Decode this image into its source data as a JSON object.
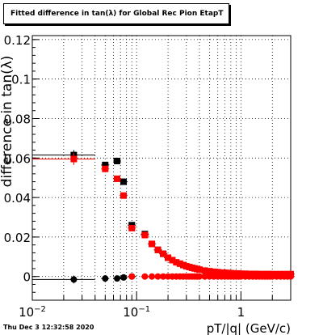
{
  "header": {
    "title": "Fitted difference in tan(λ) for Global Rec Pion EtapT"
  },
  "footer": {
    "timestamp": "Thu Dec  3 12:32:58 2020"
  },
  "chart_data": {
    "type": "scatter",
    "title": "Fitted difference in tan(λ) for Global Rec Pion EtapT",
    "xlabel": "pT/|q| (GeV/c)",
    "ylabel": "difference in tan(λ)",
    "xscale": "log",
    "xlim": [
      0.01,
      3.0
    ],
    "ylim": [
      -0.012,
      0.122
    ],
    "grid": true,
    "x_ticks": [
      {
        "value": 0.01,
        "base": "10",
        "exp": "−2"
      },
      {
        "value": 0.1,
        "base": "10",
        "exp": "−1"
      },
      {
        "value": 1,
        "base": "1",
        "exp": ""
      }
    ],
    "y_ticks": [
      {
        "value": 0,
        "label": "0"
      },
      {
        "value": 0.02,
        "label": "0.02"
      },
      {
        "value": 0.04,
        "label": "0.04"
      },
      {
        "value": 0.06,
        "label": "0.06"
      },
      {
        "value": 0.08,
        "label": "0.08"
      },
      {
        "value": 0.1,
        "label": "0.1"
      },
      {
        "value": 0.12,
        "label": "0.12"
      }
    ],
    "series": [
      {
        "color": "#000000",
        "marker": "square",
        "x": [
          0.025,
          0.05,
          0.065,
          0.075,
          0.09,
          0.12,
          0.14,
          0.16,
          0.18,
          0.2
        ],
        "y": [
          0.0615,
          0.0565,
          0.0585,
          0.048,
          0.026,
          0.0215,
          0.0165,
          0.0135,
          0.0115,
          0.0095
        ],
        "x_low": [
          0.01,
          null,
          null,
          null,
          null,
          null,
          null,
          null,
          null,
          null
        ],
        "x_high": [
          0.04,
          null,
          null,
          null,
          null,
          null,
          null,
          null,
          null,
          null
        ],
        "y_err": [
          0.0025,
          0.0015,
          0.001,
          0.001,
          0.001,
          0.001,
          0.0008,
          0.0008,
          0.0008,
          0.0008
        ]
      },
      {
        "color": "#ff0000",
        "marker": "square",
        "x": [
          0.025,
          0.05,
          0.065,
          0.075,
          0.09,
          0.12,
          0.14,
          0.16,
          0.18,
          0.2,
          0.22,
          0.24,
          0.26,
          0.28,
          0.3,
          0.32,
          0.34,
          0.36,
          0.38,
          0.4,
          0.45,
          0.5,
          0.55,
          0.6,
          0.65,
          0.7,
          0.75,
          0.8,
          0.85,
          0.9,
          0.95,
          1.0,
          1.1,
          1.2,
          1.3,
          1.4,
          1.5,
          1.6,
          1.7,
          1.8,
          1.9,
          2.0,
          2.2,
          2.4,
          2.6,
          2.8,
          3.0
        ],
        "y": [
          0.0595,
          0.0545,
          0.0495,
          0.041,
          0.0245,
          0.021,
          0.0165,
          0.0135,
          0.0115,
          0.0095,
          0.0083,
          0.0072,
          0.0065,
          0.0058,
          0.0052,
          0.0048,
          0.0044,
          0.0041,
          0.0038,
          0.0035,
          0.003,
          0.0027,
          0.0024,
          0.0022,
          0.002,
          0.0019,
          0.0018,
          0.0017,
          0.0016,
          0.0015,
          0.0015,
          0.0014,
          0.0014,
          0.0013,
          0.0013,
          0.0013,
          0.0012,
          0.0012,
          0.0012,
          0.0012,
          0.0012,
          0.0012,
          0.0012,
          0.0012,
          0.0012,
          0.0012,
          0.0012
        ],
        "x_low": [
          0.01,
          null,
          null,
          null,
          null,
          null,
          null,
          null,
          null,
          null,
          null,
          null,
          null,
          null,
          null,
          null,
          null,
          null,
          null,
          null,
          null,
          null,
          null,
          null,
          null,
          null,
          null,
          null,
          null,
          null,
          null,
          null,
          null,
          null,
          null,
          null,
          null,
          null,
          null,
          null,
          null,
          null,
          null,
          null,
          null,
          null,
          null
        ],
        "x_high": [
          0.04,
          null,
          null,
          null,
          null,
          null,
          null,
          null,
          null,
          null,
          null,
          null,
          null,
          null,
          null,
          null,
          null,
          null,
          null,
          null,
          null,
          null,
          null,
          null,
          null,
          null,
          null,
          null,
          null,
          null,
          null,
          null,
          null,
          null,
          null,
          null,
          null,
          null,
          null,
          null,
          null,
          null,
          null,
          null,
          null,
          null,
          null
        ],
        "y_err": [
          0.003,
          0.0015,
          0.001,
          0.001,
          0.001,
          0.001,
          0.0008,
          0.0008,
          0.0008,
          0.0008,
          0.0006,
          0.0006,
          0.0006,
          0.0006,
          0.0006,
          0.0005,
          0.0005,
          0.0005,
          0.0005,
          0.0005,
          0.0005,
          0.0005,
          0.0005,
          0.0005,
          0.0005,
          0.0005,
          0.0005,
          0.0005,
          0.0005,
          0.0005,
          0.0005,
          0.0005,
          0.0005,
          0.0005,
          0.0005,
          0.0005,
          0.0005,
          0.0005,
          0.0005,
          0.0005,
          0.0005,
          0.0005,
          0.0005,
          0.0005,
          0.0005,
          0.0005,
          0.0005
        ]
      },
      {
        "color": "#000000",
        "marker": "circle",
        "x": [
          0.025,
          0.05,
          0.065,
          0.075,
          0.09
        ],
        "y": [
          -0.0015,
          -0.001,
          -0.001,
          -0.0005,
          0.0
        ],
        "x_low": [
          0.01,
          null,
          null,
          null,
          null
        ],
        "x_high": [
          0.04,
          null,
          null,
          null,
          null
        ],
        "y_err": [
          0.002,
          0.001,
          0.001,
          0.001,
          0.0005
        ]
      },
      {
        "color": "#ff0000",
        "marker": "circle",
        "x": [
          0.09,
          0.12,
          0.14,
          0.16,
          0.18,
          0.2,
          0.22,
          0.24,
          0.26,
          0.28,
          0.3,
          0.32,
          0.34,
          0.36,
          0.38,
          0.4,
          0.45,
          0.5,
          0.55,
          0.6,
          0.65,
          0.7,
          0.75,
          0.8,
          0.85,
          0.9,
          0.95,
          1.0,
          1.1,
          1.2,
          1.3,
          1.4,
          1.5,
          1.6,
          1.7,
          1.8,
          1.9,
          2.0,
          2.2,
          2.4,
          2.6,
          2.8,
          3.0
        ],
        "y": [
          0.0,
          0.0,
          0.0,
          0.0,
          0.0,
          0.0,
          0.0,
          0.0,
          0.0,
          0.0,
          0.0,
          0.0,
          0.0,
          0.0,
          0.0,
          0.0,
          0.0,
          0.0,
          0.0,
          0.0,
          0.0,
          0.0,
          0.0,
          0.0,
          0.0,
          0.0,
          0.0,
          0.0,
          0.0,
          0.0,
          0.0,
          0.0,
          0.0,
          0.0,
          0.0,
          0.0,
          0.0,
          0.0,
          0.0,
          0.0,
          0.0,
          0.0,
          0.0
        ],
        "x_low": [
          null,
          null,
          null,
          null,
          null,
          null,
          null,
          null,
          null,
          null,
          null,
          null,
          null,
          null,
          null,
          null,
          null,
          null,
          null,
          null,
          null,
          null,
          null,
          null,
          null,
          null,
          null,
          null,
          null,
          null,
          null,
          null,
          null,
          null,
          null,
          null,
          null,
          null,
          null,
          null,
          null,
          null,
          null
        ],
        "x_high": [
          null,
          null,
          null,
          null,
          null,
          null,
          null,
          null,
          null,
          null,
          null,
          null,
          null,
          null,
          null,
          null,
          null,
          null,
          null,
          null,
          null,
          null,
          null,
          null,
          null,
          null,
          null,
          null,
          null,
          null,
          null,
          null,
          null,
          null,
          null,
          null,
          null,
          null,
          null,
          null,
          null,
          null,
          null
        ],
        "y_err": [
          0.0005,
          0.0005,
          0.0005,
          0.0005,
          0.0005,
          0.0005,
          0.0005,
          0.0005,
          0.0005,
          0.0005,
          0.0005,
          0.0005,
          0.0005,
          0.0005,
          0.0005,
          0.0005,
          0.0005,
          0.0005,
          0.0005,
          0.0005,
          0.0005,
          0.0005,
          0.0005,
          0.0005,
          0.0005,
          0.0005,
          0.0005,
          0.0005,
          0.0005,
          0.0005,
          0.0005,
          0.0005,
          0.0005,
          0.0005,
          0.0005,
          0.0005,
          0.0005,
          0.0005,
          0.0005,
          0.0005,
          0.0005,
          0.0005,
          0.0005
        ]
      }
    ]
  }
}
